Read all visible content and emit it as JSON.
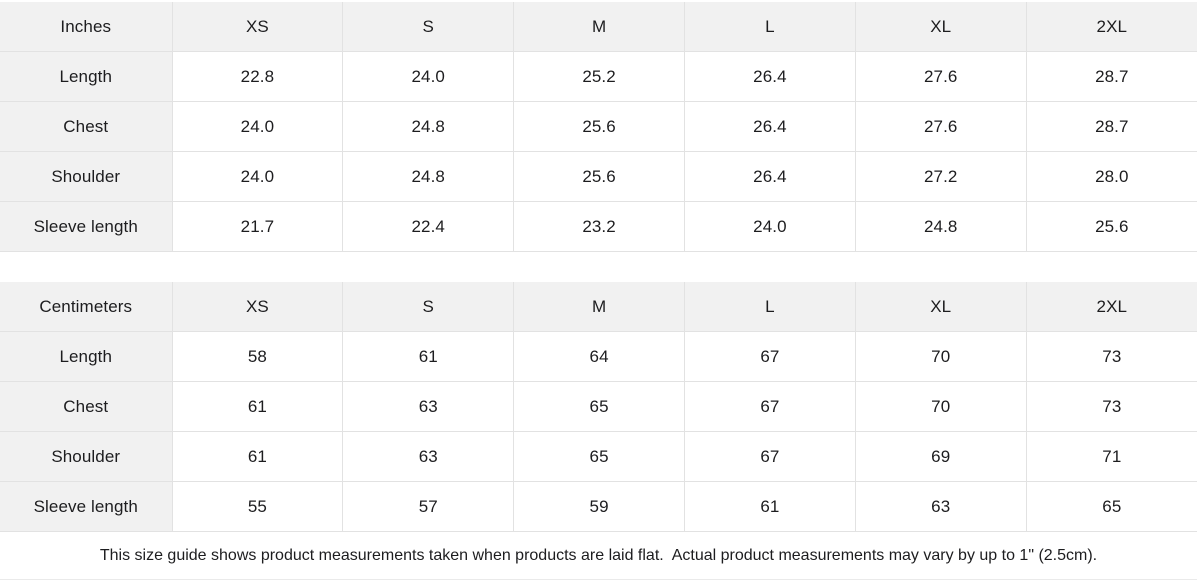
{
  "chart_data": [
    {
      "type": "table",
      "unit_label": "Inches",
      "columns": [
        "XS",
        "S",
        "M",
        "L",
        "XL",
        "2XL"
      ],
      "rows": [
        {
          "label": "Length",
          "values": [
            "22.8",
            "24.0",
            "25.2",
            "26.4",
            "27.6",
            "28.7"
          ]
        },
        {
          "label": "Chest",
          "values": [
            "24.0",
            "24.8",
            "25.6",
            "26.4",
            "27.6",
            "28.7"
          ]
        },
        {
          "label": "Shoulder",
          "values": [
            "24.0",
            "24.8",
            "25.6",
            "26.4",
            "27.2",
            "28.0"
          ]
        },
        {
          "label": "Sleeve length",
          "values": [
            "21.7",
            "22.4",
            "23.2",
            "24.0",
            "24.8",
            "25.6"
          ]
        }
      ]
    },
    {
      "type": "table",
      "unit_label": "Centimeters",
      "columns": [
        "XS",
        "S",
        "M",
        "L",
        "XL",
        "2XL"
      ],
      "rows": [
        {
          "label": "Length",
          "values": [
            "58",
            "61",
            "64",
            "67",
            "70",
            "73"
          ]
        },
        {
          "label": "Chest",
          "values": [
            "61",
            "63",
            "65",
            "67",
            "70",
            "73"
          ]
        },
        {
          "label": "Shoulder",
          "values": [
            "61",
            "63",
            "65",
            "67",
            "69",
            "71"
          ]
        },
        {
          "label": "Sleeve length",
          "values": [
            "55",
            "57",
            "59",
            "61",
            "63",
            "65"
          ]
        }
      ]
    }
  ],
  "footer": {
    "note": "This size guide shows product measurements taken when products are laid flat.  Actual product measurements may vary by up to 1\" (2.5cm)."
  },
  "colors": {
    "header_bg": "#f1f1f1",
    "border": "#e2e2e2",
    "text": "#1d1d1f"
  }
}
